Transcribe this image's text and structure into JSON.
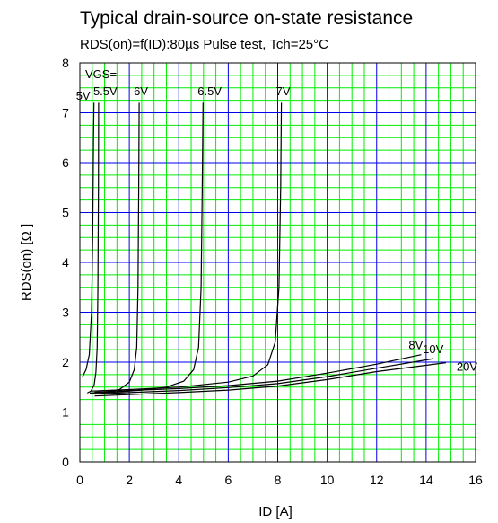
{
  "chart_data": {
    "type": "line",
    "title": "Typical drain-source on-state resistance",
    "subtitle": "RDS(on)=f(ID):80µs Pulse test, Tch=25°C",
    "xlabel": "ID [A]",
    "ylabel": "RDS(on) [Ω ]",
    "xlim": [
      0,
      16
    ],
    "ylim": [
      0,
      8
    ],
    "x_ticks": [
      "0",
      "2",
      "4",
      "6",
      "8",
      "10",
      "12",
      "14",
      "16"
    ],
    "y_ticks": [
      "0",
      "1",
      "2",
      "3",
      "4",
      "5",
      "6",
      "7",
      "8"
    ],
    "grid": true,
    "series_caption": "VGS=",
    "series": [
      {
        "name": "5V",
        "x": [
          0.1,
          0.25,
          0.38,
          0.47,
          0.52,
          0.55,
          0.57
        ],
        "y": [
          1.7,
          1.85,
          2.15,
          3.0,
          4.5,
          6.5,
          7.2
        ]
      },
      {
        "name": "5.5V",
        "x": [
          0.3,
          0.45,
          0.58,
          0.65,
          0.7,
          0.73,
          0.75,
          0.76
        ],
        "y": [
          1.38,
          1.42,
          1.55,
          1.8,
          2.3,
          3.5,
          5.5,
          7.2
        ]
      },
      {
        "name": "6V",
        "x": [
          0.4,
          1.0,
          1.6,
          2.0,
          2.2,
          2.3,
          2.35,
          2.38,
          2.4
        ],
        "y": [
          1.38,
          1.4,
          1.45,
          1.6,
          1.85,
          2.3,
          3.5,
          5.5,
          7.2
        ]
      },
      {
        "name": "6.5V",
        "x": [
          0.5,
          1.5,
          2.5,
          3.5,
          4.2,
          4.6,
          4.8,
          4.9,
          4.95,
          4.98
        ],
        "y": [
          1.38,
          1.4,
          1.44,
          1.5,
          1.62,
          1.85,
          2.3,
          3.5,
          5.5,
          7.2
        ]
      },
      {
        "name": "7V",
        "x": [
          0.5,
          2,
          4,
          6,
          7,
          7.6,
          7.9,
          8.05,
          8.12,
          8.15
        ],
        "y": [
          1.42,
          1.45,
          1.5,
          1.6,
          1.72,
          1.95,
          2.4,
          3.5,
          5.5,
          7.2
        ]
      },
      {
        "name": "8V",
        "x": [
          0.6,
          2,
          4,
          6,
          8,
          10,
          12,
          13.8
        ],
        "y": [
          1.4,
          1.43,
          1.47,
          1.53,
          1.62,
          1.78,
          1.96,
          2.15
        ]
      },
      {
        "name": "10V",
        "x": [
          0.6,
          2,
          4,
          6,
          8,
          10,
          12,
          14.3
        ],
        "y": [
          1.36,
          1.39,
          1.43,
          1.49,
          1.57,
          1.71,
          1.88,
          2.07
        ]
      },
      {
        "name": "20V",
        "x": [
          0.6,
          2,
          4,
          6,
          8,
          10,
          12,
          14.8
        ],
        "y": [
          1.32,
          1.35,
          1.39,
          1.44,
          1.52,
          1.65,
          1.81,
          1.99
        ]
      }
    ],
    "colors": {
      "grid_major": "#0000ee",
      "grid_minor": "#00ee00",
      "line": "#000000"
    }
  }
}
